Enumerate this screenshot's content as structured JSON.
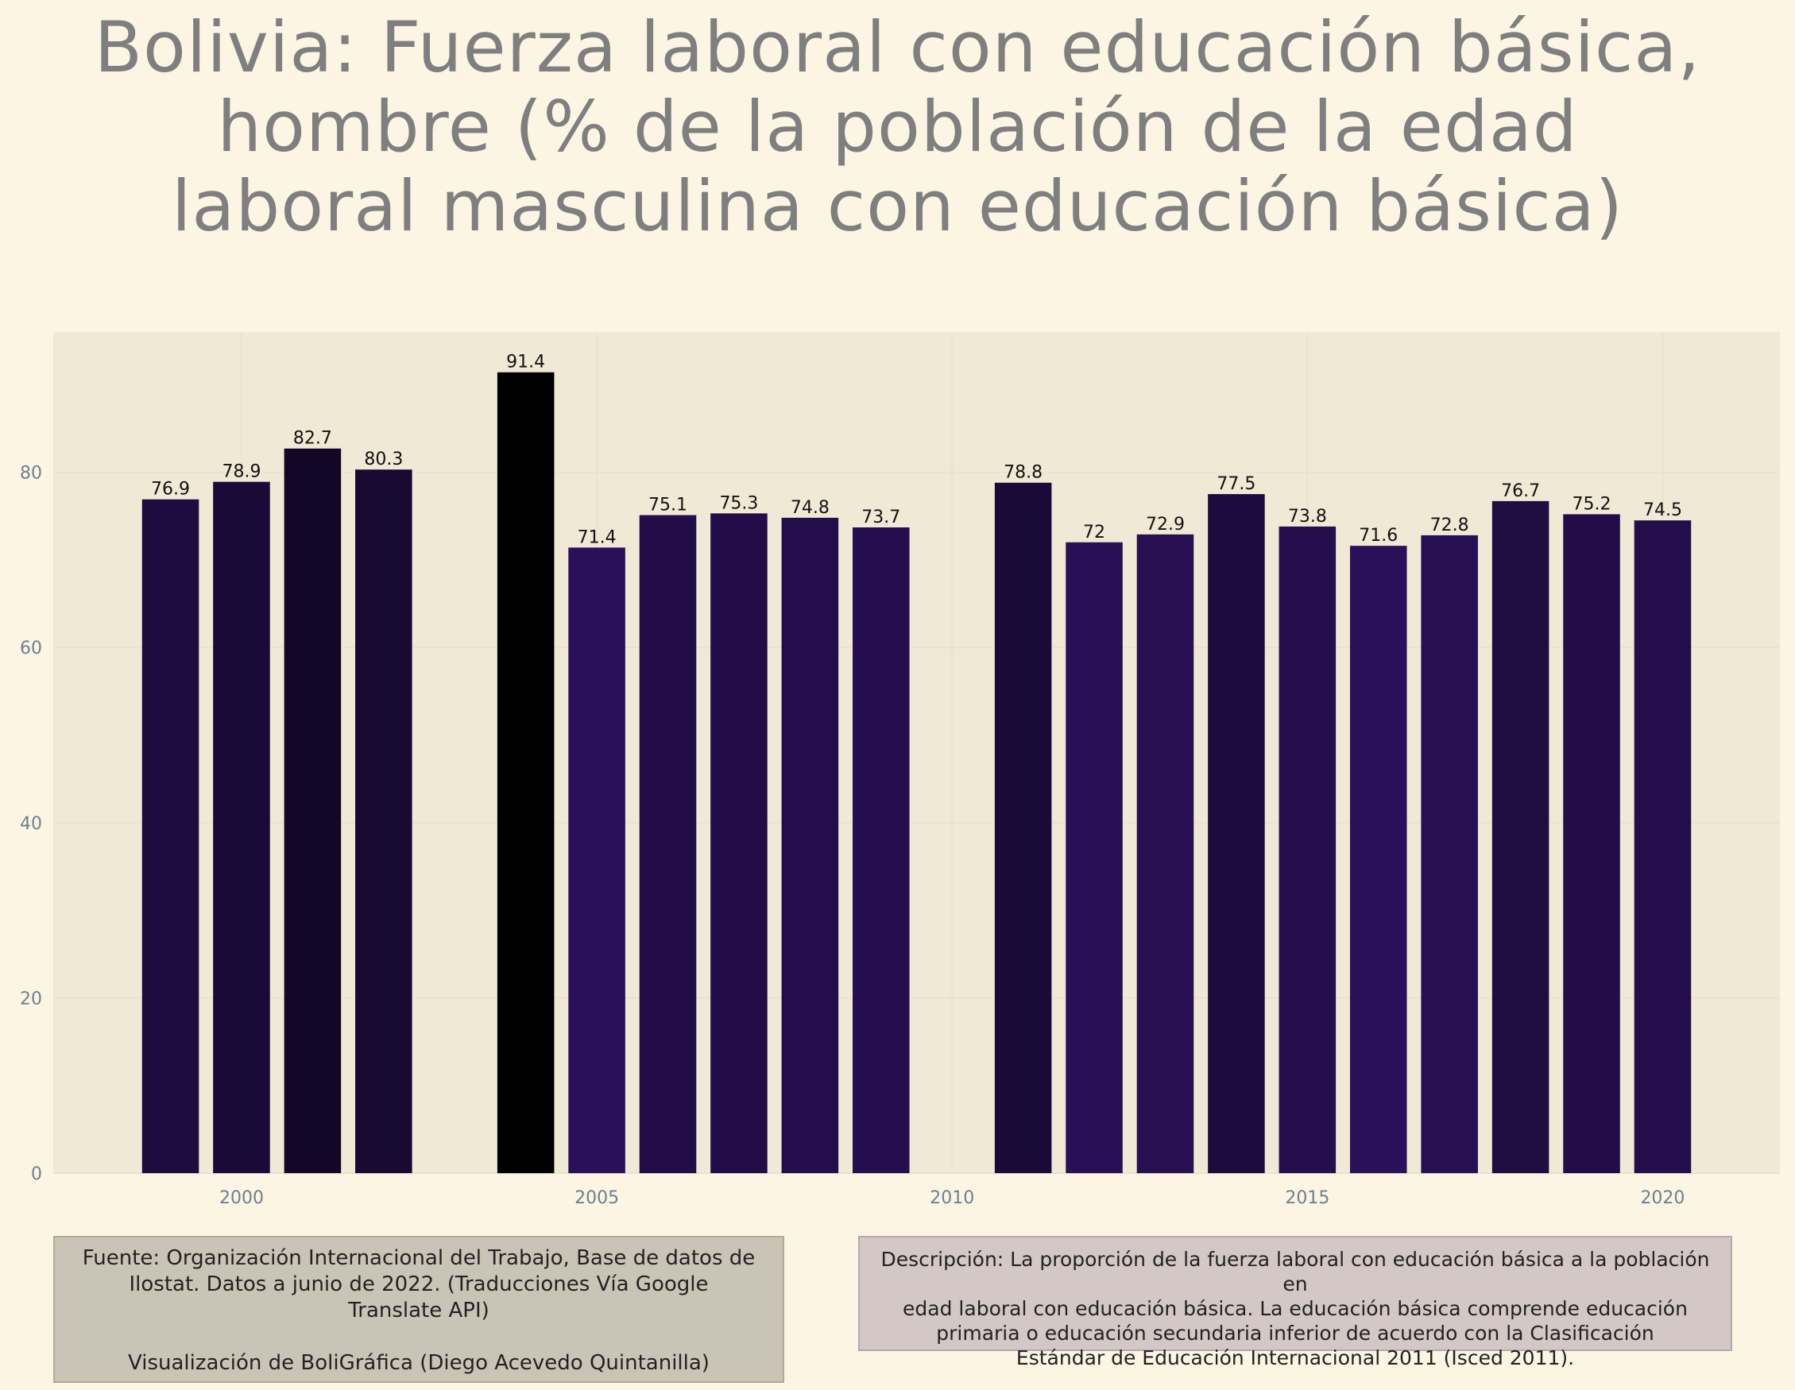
{
  "title_lines": [
    "Bolivia:  Fuerza laboral con educación básica,",
    "hombre (% de la población de la edad",
    "laboral masculina con educación básica)"
  ],
  "chart_data": {
    "type": "bar",
    "title": "Bolivia:  Fuerza laboral con educación básica, hombre (% de la población de la edad laboral masculina con educación básica)",
    "xlabel": "",
    "ylabel": "",
    "x": [
      1999,
      2000,
      2001,
      2002,
      2004,
      2005,
      2006,
      2007,
      2008,
      2009,
      2011,
      2012,
      2013,
      2014,
      2015,
      2016,
      2017,
      2018,
      2019,
      2020
    ],
    "values": [
      76.9,
      78.9,
      82.7,
      80.3,
      91.4,
      71.4,
      75.1,
      75.3,
      74.8,
      73.7,
      78.8,
      72,
      72.9,
      77.5,
      73.8,
      71.6,
      72.8,
      76.7,
      75.2,
      74.5
    ],
    "value_labels": [
      "76.9",
      "78.9",
      "82.7",
      "80.3",
      "91.4",
      "71.4",
      "75.1",
      "75.3",
      "74.8",
      "73.7",
      "78.8",
      "72",
      "72.9",
      "77.5",
      "73.8",
      "71.6",
      "72.8",
      "76.7",
      "75.2",
      "74.5"
    ],
    "xlim": [
      1997.35,
      2021.65
    ],
    "ylim": [
      0,
      96
    ],
    "x_ticks": [
      2000,
      2005,
      2010,
      2015,
      2020
    ],
    "x_tick_labels": [
      "2000",
      "2005",
      "2010",
      "2015",
      "2020"
    ],
    "y_ticks": [
      0,
      20,
      40,
      60,
      80
    ],
    "y_tick_labels": [
      "0",
      "20",
      "40",
      "60",
      "80"
    ],
    "grid": true,
    "legend": "none",
    "colors": {
      "panel_bg": "#f0e9d6",
      "grid": "#ebe3d0",
      "tick_label": "#6f8090",
      "value_label": "#111111",
      "bar_low": "#2a1059",
      "bar_high": "#000000"
    }
  },
  "footer": {
    "source_lines": [
      "Fuente: Organización Internacional del Trabajo, Base de datos de",
      "Ilostat. Datos a junio de 2022. (Traducciones Vía Google",
      "Translate API)"
    ],
    "credit": "Visualización de BoliGráfica (Diego Acevedo Quintanilla)",
    "description_lines": [
      "Descripción: La proporción de la fuerza laboral con educación básica a la población en",
      "edad laboral con educación básica. La educación básica comprende educación",
      "primaria o educación secundaria inferior de acuerdo con la Clasificación",
      "Estándar de Educación Internacional 2011 (Isced 2011)."
    ]
  }
}
